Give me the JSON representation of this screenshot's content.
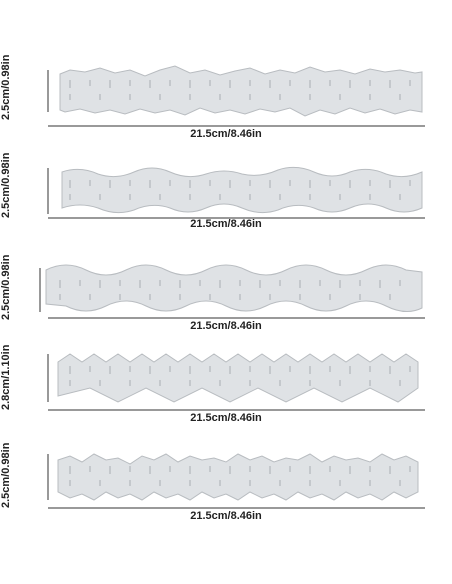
{
  "rulers": [
    {
      "height_label": "2.5cm/0.98in",
      "width_label": "21.5cm/8.46in",
      "edge": "jagged"
    },
    {
      "height_label": "2.5cm/0.98in",
      "width_label": "21.5cm/8.46in",
      "edge": "scallop"
    },
    {
      "height_label": "2.5cm/0.98in",
      "width_label": "21.5cm/8.46in",
      "edge": "wave"
    },
    {
      "height_label": "2.8cm/1.10in",
      "width_label": "21.5cm/8.46in",
      "edge": "zigzag"
    },
    {
      "height_label": "2.5cm/0.98in",
      "width_label": "21.5cm/8.46in",
      "edge": "deckle"
    }
  ],
  "colors": {
    "ruler_fill": "#d9dcdf",
    "ruler_stroke": "#b8bcc0",
    "mark": "#9aa0a6",
    "dimension_line": "#333333"
  }
}
